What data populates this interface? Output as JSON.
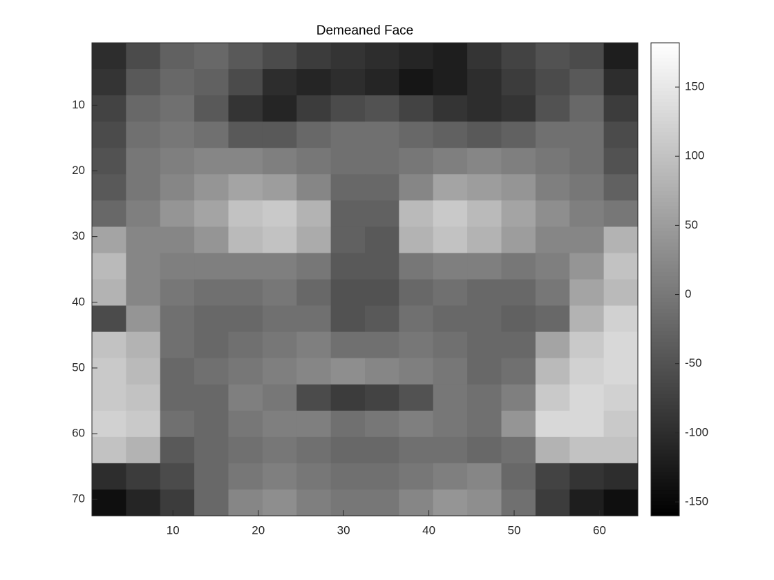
{
  "chart_data": {
    "type": "heatmap",
    "title": "Demeaned Face",
    "colormap": "gray",
    "xlim": [
      0.5,
      64.5
    ],
    "ylim": [
      0.5,
      72.5
    ],
    "xticks": [
      10,
      20,
      30,
      40,
      50,
      60
    ],
    "yticks": [
      10,
      20,
      30,
      40,
      50,
      60,
      70
    ],
    "clim": [
      -160,
      182
    ],
    "cticks": [
      -150,
      -100,
      -50,
      0,
      50,
      100,
      150
    ],
    "values": [
      [
        -100,
        -60,
        -30,
        -20,
        -40,
        -60,
        -80,
        -90,
        -100,
        -110,
        -120,
        -90,
        -70,
        -50,
        -60,
        -120
      ],
      [
        -90,
        -40,
        -20,
        -30,
        -60,
        -100,
        -110,
        -100,
        -110,
        -130,
        -120,
        -100,
        -80,
        -60,
        -40,
        -100
      ],
      [
        -70,
        -20,
        -10,
        -40,
        -90,
        -110,
        -80,
        -60,
        -50,
        -70,
        -90,
        -100,
        -90,
        -50,
        -20,
        -80
      ],
      [
        -60,
        -10,
        0,
        -10,
        -40,
        -40,
        -20,
        -10,
        -10,
        -20,
        -30,
        -40,
        -30,
        -10,
        -10,
        -60
      ],
      [
        -50,
        0,
        10,
        20,
        20,
        10,
        0,
        -10,
        -10,
        0,
        10,
        20,
        10,
        0,
        -10,
        -50
      ],
      [
        -40,
        0,
        20,
        40,
        60,
        50,
        20,
        -20,
        -20,
        20,
        60,
        50,
        40,
        10,
        0,
        -30
      ],
      [
        -20,
        10,
        40,
        60,
        100,
        110,
        80,
        -30,
        -30,
        90,
        110,
        90,
        60,
        30,
        10,
        0
      ],
      [
        60,
        20,
        20,
        40,
        90,
        100,
        70,
        -30,
        -40,
        80,
        100,
        80,
        50,
        20,
        20,
        80
      ],
      [
        90,
        20,
        10,
        10,
        10,
        10,
        0,
        -40,
        -40,
        0,
        10,
        10,
        0,
        10,
        40,
        100
      ],
      [
        80,
        20,
        0,
        -10,
        -10,
        0,
        -20,
        -50,
        -50,
        -20,
        -10,
        -20,
        -20,
        0,
        60,
        90
      ],
      [
        -60,
        40,
        -10,
        -20,
        -20,
        -10,
        -10,
        -50,
        -40,
        -10,
        -20,
        -20,
        -30,
        -20,
        80,
        120
      ],
      [
        100,
        80,
        -10,
        -20,
        -10,
        0,
        10,
        -10,
        -10,
        0,
        -10,
        -20,
        -20,
        60,
        110,
        130
      ],
      [
        110,
        90,
        -20,
        -10,
        0,
        10,
        20,
        30,
        20,
        10,
        0,
        -20,
        -10,
        90,
        120,
        130
      ],
      [
        110,
        100,
        -20,
        -20,
        10,
        0,
        -60,
        -80,
        -70,
        -50,
        0,
        -10,
        10,
        110,
        130,
        120
      ],
      [
        120,
        110,
        -10,
        -20,
        0,
        10,
        10,
        -10,
        0,
        10,
        0,
        -10,
        40,
        130,
        130,
        110
      ],
      [
        100,
        80,
        -40,
        -20,
        -10,
        0,
        -10,
        -20,
        -20,
        -10,
        -10,
        -20,
        -10,
        80,
        100,
        100
      ],
      [
        -100,
        -80,
        -60,
        -20,
        0,
        10,
        0,
        -10,
        -10,
        0,
        10,
        20,
        -20,
        -70,
        -90,
        -100
      ],
      [
        -140,
        -110,
        -80,
        -20,
        20,
        30,
        10,
        0,
        0,
        20,
        40,
        30,
        -10,
        -80,
        -120,
        -140
      ]
    ]
  }
}
